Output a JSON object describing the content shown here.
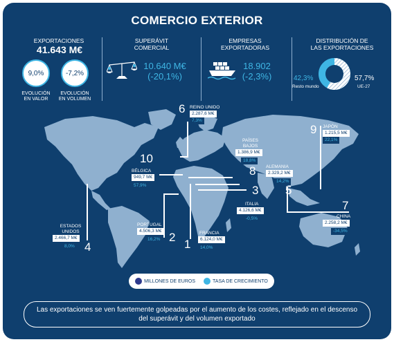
{
  "header": {
    "title": "COMERCIO EXTERIOR"
  },
  "exportaciones": {
    "label": "EXPORTACIONES",
    "value": "41.643 M€",
    "valor_pct": "9,0%",
    "valor_label_1": "EVOLUCIÓN",
    "valor_label_2": "EN VALOR",
    "volumen_pct": "-7,2%",
    "volumen_label_1": "EVOLUCIÓN",
    "volumen_label_2": "EN VOLUMEN"
  },
  "superavit": {
    "label_1": "SUPERÁVIT",
    "label_2": "COMERCIAL",
    "value": "10.640 M€",
    "change": "(-20,1%)"
  },
  "empresas": {
    "label_1": "EMPRESAS",
    "label_2": "EXPORTADORAS",
    "value": "18.902",
    "change": "(-2,3%)"
  },
  "distribucion": {
    "label_1": "DISTRIBUCIÓN DE",
    "label_2": "LAS EXPORTACIONES",
    "resto_pct": "42,3%",
    "resto_label": "Resto mundo",
    "ue_pct": "57,7%",
    "ue_label": "UE-27",
    "ue_fraction": 0.577
  },
  "countries": [
    {
      "rank": "1",
      "name_1": "FRANCIA",
      "name_2": "",
      "value": "6.124,0 M€",
      "growth": "14,0%"
    },
    {
      "rank": "2",
      "name_1": "PORTUGAL",
      "name_2": "",
      "value": "4.506,3 M€",
      "growth": "16,2%"
    },
    {
      "rank": "3",
      "name_1": "ITALIA",
      "name_2": "",
      "value": "4.126,6 M€",
      "growth": "-0,5%"
    },
    {
      "rank": "4",
      "name_1": "ESTADOS",
      "name_2": "UNIDOS",
      "value": "2.466,7 M€",
      "growth": "8,0%"
    },
    {
      "rank": "5",
      "name_1": "ALEMANIA",
      "name_2": "",
      "value": "2.329,2 M€",
      "growth": "14,2%"
    },
    {
      "rank": "6",
      "name_1": "REINO UNIDO",
      "name_2": "",
      "value": "2.287,6 M€",
      "growth": "7,3%"
    },
    {
      "rank": "7",
      "name_1": "CHINA",
      "name_2": "",
      "value": "2.258,2 M€",
      "growth": "-34,5%"
    },
    {
      "rank": "8",
      "name_1": "PAÍSES",
      "name_2": "BAJOS",
      "value": "1.386,9 M€",
      "growth": "18,8%"
    },
    {
      "rank": "9",
      "name_1": "JAPÓN",
      "name_2": "",
      "value": "1.215,5 M€",
      "growth": "22,1%"
    },
    {
      "rank": "10",
      "name_1": "BÉLGICA",
      "name_2": "",
      "value": "949,7 M€",
      "growth": "57,9%"
    }
  ],
  "legend": {
    "millones": "MILLONES DE EUROS",
    "tasa": "TASA DE CRECIMIENTO",
    "millones_color": "#2e3a8c",
    "tasa_color": "#3fb6e4"
  },
  "footer": {
    "text": "Las exportaciones se ven fuertemente golpeadas por el aumento de los costes, reflejado en el descenso del superávit y del volumen exportado"
  },
  "colors": {
    "background": "#0f3f6e",
    "accent": "#3fb6e4",
    "map": "#8fb0cf"
  }
}
